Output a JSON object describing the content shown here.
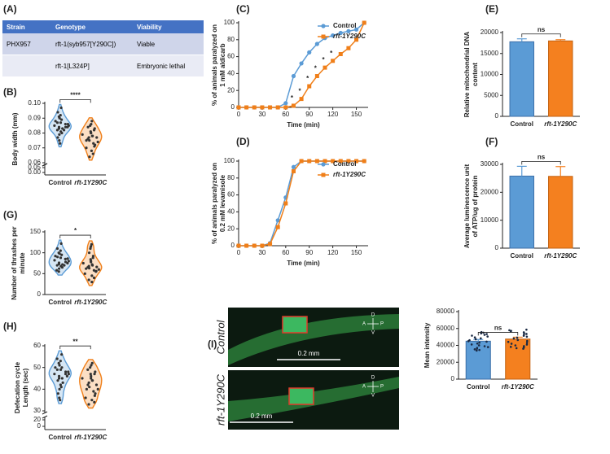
{
  "table": {
    "label": "(A)",
    "header": [
      "Strain",
      "Genotype",
      "Viability"
    ],
    "rows": [
      [
        "PHX957",
        "rft-1(syb957[Y290C])",
        "Viable"
      ],
      [
        null,
        "rft-1[L324P]",
        "Embryonic lethal"
      ]
    ]
  },
  "images": {
    "label": "(I)",
    "panels": [
      {
        "label": "Control",
        "scale": "0.2 mm",
        "compass": [
          "D",
          "A",
          "P",
          "V"
        ]
      },
      {
        "label": "rft-1Y290C",
        "scale": "0.2 mm",
        "compass": [
          "D",
          "A",
          "P",
          "V"
        ]
      }
    ]
  },
  "chart_data": [
    {
      "type": "violin",
      "label": "(B)",
      "ylabel": [
        "Body width (mm)"
      ],
      "categories": [
        "Control",
        "rft-1Y290C"
      ],
      "series": [
        {
          "name": "Control",
          "color": "#5b9bd5",
          "values": [
            0.097,
            0.094,
            0.092,
            0.091,
            0.09,
            0.089,
            0.088,
            0.087,
            0.087,
            0.086,
            0.086,
            0.085,
            0.085,
            0.084,
            0.084,
            0.084,
            0.083,
            0.083,
            0.082,
            0.082,
            0.081,
            0.08,
            0.079,
            0.077,
            0.075,
            0.073
          ]
        },
        {
          "name": "rft-1Y290C",
          "color": "#f07f19",
          "values": [
            0.088,
            0.086,
            0.085,
            0.084,
            0.083,
            0.082,
            0.081,
            0.08,
            0.08,
            0.079,
            0.078,
            0.078,
            0.077,
            0.077,
            0.076,
            0.075,
            0.075,
            0.074,
            0.073,
            0.072,
            0.071,
            0.07,
            0.068,
            0.066,
            0.064
          ]
        }
      ],
      "ylim": [
        0.06,
        0.1
      ],
      "yticks": [
        {
          "value": 0.1,
          "label": "0.10"
        },
        0.09,
        0.08,
        0.07,
        {
          "value": 0.06,
          "label": "0.06"
        }
      ],
      "break_ticks": [
        0.05,
        {
          "value": 0,
          "label": "0.00"
        }
      ],
      "significance": "****"
    },
    {
      "type": "violin",
      "label": "(G)",
      "ylabel": [
        "Number of thrashes per",
        "minute"
      ],
      "categories": [
        "Control",
        "rft-1Y290C"
      ],
      "series": [
        {
          "name": "Control",
          "color": "#5b9bd5",
          "values": [
            122,
            110,
            105,
            100,
            98,
            95,
            92,
            90,
            88,
            86,
            85,
            82,
            80,
            78,
            76,
            75,
            73,
            72,
            70,
            70,
            68,
            65,
            62,
            58,
            55
          ]
        },
        {
          "name": "rft-1Y290C",
          "color": "#f07f19",
          "values": [
            120,
            115,
            110,
            100,
            92,
            88,
            84,
            80,
            78,
            75,
            72,
            70,
            68,
            66,
            65,
            63,
            62,
            60,
            58,
            56,
            55,
            50,
            45,
            40,
            35,
            30
          ]
        }
      ],
      "ylim": [
        0,
        150
      ],
      "yticks": [
        0,
        50,
        100,
        150
      ],
      "significance": "*"
    },
    {
      "type": "violin",
      "label": "(H)",
      "ylabel": [
        "Defecation cycle",
        "Length (sec)"
      ],
      "categories": [
        "Control",
        "rft-1Y290C"
      ],
      "series": [
        {
          "name": "Control",
          "color": "#5b9bd5",
          "values": [
            56,
            54,
            53,
            52,
            51,
            50,
            50,
            49,
            49,
            48,
            48,
            47,
            47,
            47,
            46,
            46,
            45,
            45,
            44,
            43,
            42,
            41,
            40,
            38,
            36,
            35
          ]
        },
        {
          "name": "rft-1Y290C",
          "color": "#f07f19",
          "values": [
            52,
            51,
            50,
            49,
            48,
            47,
            47,
            46,
            45,
            45,
            44,
            44,
            43,
            42,
            42,
            41,
            40,
            40,
            39,
            38,
            37,
            36,
            35,
            34,
            33
          ]
        }
      ],
      "ylim": [
        30,
        60
      ],
      "yticks": [
        30,
        40,
        50,
        60
      ],
      "break_ticks": [
        20,
        0
      ],
      "significance": "**"
    },
    {
      "type": "line",
      "label": "(C)",
      "ylabel": [
        "% of animals paralyzed on",
        "1 mM aldicarb"
      ],
      "xlabel": "Time (min)",
      "x": [
        0,
        10,
        20,
        30,
        40,
        50,
        60,
        70,
        80,
        90,
        100,
        110,
        120,
        130,
        140,
        150,
        160
      ],
      "series": [
        {
          "name": "Control",
          "color": "#5b9bd5",
          "marker": "circle",
          "values": [
            0,
            0,
            0,
            0,
            0,
            0,
            5,
            37,
            52,
            65,
            75,
            82,
            85,
            88,
            90,
            92,
            100
          ]
        },
        {
          "name": "rft-1Y290C",
          "color": "#f07f19",
          "marker": "square",
          "values": [
            0,
            0,
            0,
            0,
            0,
            0,
            0,
            2,
            10,
            25,
            37,
            47,
            55,
            63,
            70,
            80,
            100
          ]
        }
      ],
      "xlim": [
        0,
        165
      ],
      "xticks": [
        0,
        30,
        60,
        90,
        120,
        150
      ],
      "ylim": [
        0,
        100
      ],
      "yticks": [
        0,
        20,
        40,
        60,
        80,
        100
      ],
      "legend": "upper right",
      "stars_at": [
        70,
        80,
        90,
        100,
        110,
        120
      ],
      "star": "*"
    },
    {
      "type": "line",
      "label": "(D)",
      "ylabel": [
        "% of animals paralyzed on",
        "0.2 mM levamisole"
      ],
      "xlabel": "Time (min)",
      "x": [
        0,
        10,
        20,
        30,
        40,
        50,
        60,
        70,
        80,
        90,
        100,
        110,
        120,
        130,
        140,
        150,
        160
      ],
      "series": [
        {
          "name": "Control",
          "color": "#5b9bd5",
          "marker": "circle",
          "values": [
            0,
            0,
            0,
            0,
            3,
            30,
            57,
            93,
            100,
            100,
            100,
            100,
            100,
            100,
            100,
            100,
            100
          ]
        },
        {
          "name": "rft-1Y290C",
          "color": "#f07f19",
          "marker": "square",
          "values": [
            0,
            0,
            0,
            0,
            2,
            22,
            50,
            88,
            100,
            100,
            100,
            100,
            100,
            100,
            100,
            100,
            100
          ]
        }
      ],
      "xlim": [
        0,
        165
      ],
      "xticks": [
        0,
        30,
        60,
        90,
        120,
        150
      ],
      "ylim": [
        0,
        100
      ],
      "yticks": [
        0,
        20,
        40,
        60,
        80,
        100
      ],
      "legend": "upper right"
    },
    {
      "type": "bar",
      "label": "(E)",
      "ylabel": [
        "Relative mitochondrial DNA",
        "content"
      ],
      "categories": [
        "Control",
        "rft-1Y290C"
      ],
      "values": [
        17800,
        18000
      ],
      "errors": [
        700,
        300
      ],
      "colors": [
        "#5b9bd5",
        "#f4801f"
      ],
      "ylim": [
        0,
        20000
      ],
      "yticks": [
        0,
        5000,
        10000,
        15000,
        20000
      ],
      "significance": "ns"
    },
    {
      "type": "bar",
      "label": "(F)",
      "ylabel": [
        "Average luminescence unit",
        "of ATP/ug of protein"
      ],
      "categories": [
        "Control",
        "rft-1Y290C"
      ],
      "values": [
        25800,
        25700
      ],
      "errors": [
        3500,
        3500
      ],
      "colors": [
        "#5b9bd5",
        "#f4801f"
      ],
      "ylim": [
        0,
        30000
      ],
      "yticks": [
        0,
        10000,
        20000,
        30000
      ],
      "significance": "ns"
    },
    {
      "type": "bar",
      "ylabel": [
        "Mean intensity"
      ],
      "categories": [
        "Control",
        "rft-1Y290C"
      ],
      "values": [
        45000,
        47500
      ],
      "errors": [
        2000,
        2200
      ],
      "colors": [
        "#5b9bd5",
        "#f4801f"
      ],
      "ylim": [
        0,
        80000
      ],
      "yticks": [
        0,
        20000,
        40000,
        60000,
        80000
      ],
      "significance": "ns"
    }
  ]
}
